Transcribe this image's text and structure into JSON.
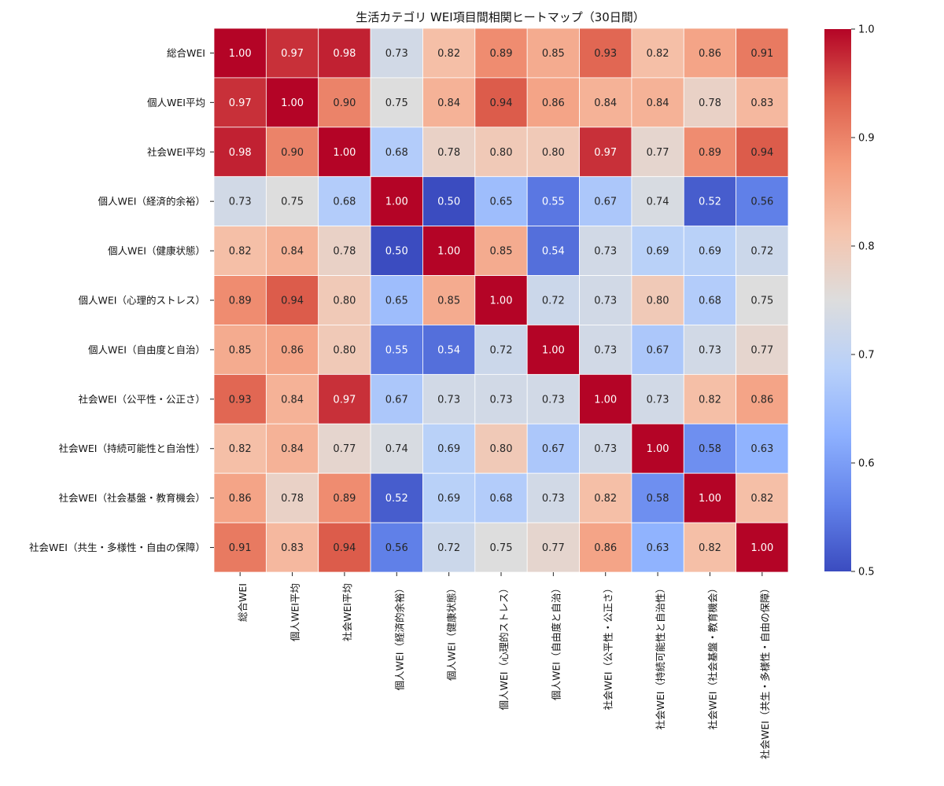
{
  "chart_data": {
    "type": "heatmap",
    "title": "生活カテゴリ WEI項目間相関ヒートマップ（30日間）",
    "labels": [
      "総合WEI",
      "個人WEI平均",
      "社会WEI平均",
      "個人WEI（経済的余裕）",
      "個人WEI（健康状態）",
      "個人WEI（心理的ストレス）",
      "個人WEI（自由度と自治）",
      "社会WEI（公平性・公正さ）",
      "社会WEI（持続可能性と自治性）",
      "社会WEI（社会基盤・教育機会）",
      "社会WEI（共生・多様性・自由の保障）"
    ],
    "values": [
      [
        1.0,
        0.97,
        0.98,
        0.73,
        0.82,
        0.89,
        0.85,
        0.93,
        0.82,
        0.86,
        0.91
      ],
      [
        0.97,
        1.0,
        0.9,
        0.75,
        0.84,
        0.94,
        0.86,
        0.84,
        0.84,
        0.78,
        0.83
      ],
      [
        0.98,
        0.9,
        1.0,
        0.68,
        0.78,
        0.8,
        0.8,
        0.97,
        0.77,
        0.89,
        0.94
      ],
      [
        0.73,
        0.75,
        0.68,
        1.0,
        0.5,
        0.65,
        0.55,
        0.67,
        0.74,
        0.52,
        0.56
      ],
      [
        0.82,
        0.84,
        0.78,
        0.5,
        1.0,
        0.85,
        0.54,
        0.73,
        0.69,
        0.69,
        0.72
      ],
      [
        0.89,
        0.94,
        0.8,
        0.65,
        0.85,
        1.0,
        0.72,
        0.73,
        0.8,
        0.68,
        0.75
      ],
      [
        0.85,
        0.86,
        0.8,
        0.55,
        0.54,
        0.72,
        1.0,
        0.73,
        0.67,
        0.73,
        0.77
      ],
      [
        0.93,
        0.84,
        0.97,
        0.67,
        0.73,
        0.73,
        0.73,
        1.0,
        0.73,
        0.82,
        0.86
      ],
      [
        0.82,
        0.84,
        0.77,
        0.74,
        0.69,
        0.8,
        0.67,
        0.73,
        1.0,
        0.58,
        0.63
      ],
      [
        0.86,
        0.78,
        0.89,
        0.52,
        0.69,
        0.68,
        0.73,
        0.82,
        0.58,
        1.0,
        0.82
      ],
      [
        0.91,
        0.83,
        0.94,
        0.56,
        0.72,
        0.75,
        0.77,
        0.86,
        0.63,
        0.82,
        1.0
      ]
    ],
    "value_format": "2 decimals",
    "colormap": "coolwarm",
    "vmin": 0.5,
    "vmax": 1.0,
    "colorbar_ticks": [
      "0.5",
      "0.6",
      "0.7",
      "0.8",
      "0.9",
      "1.0"
    ],
    "colors": {
      "low": "#3b4cc0",
      "mid": "#dddddd",
      "high": "#b40426",
      "cell_border": "#ffffff"
    },
    "legend": "colorbar-right"
  }
}
